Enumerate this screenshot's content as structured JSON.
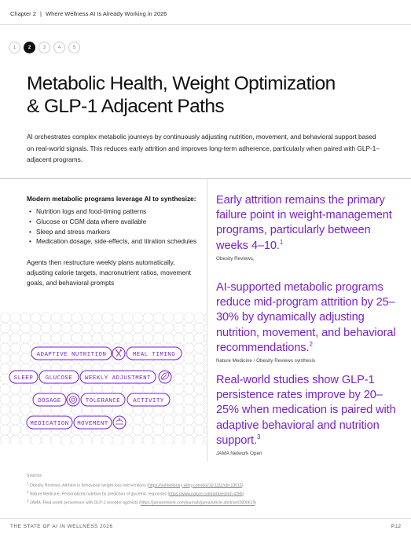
{
  "header": {
    "chapter": "Chapter 2",
    "separator": "|",
    "title": "Where Wellness AI Is Already Working in 2026"
  },
  "pager": {
    "pages": [
      "1",
      "2",
      "3",
      "4",
      "5"
    ],
    "active_index": 1
  },
  "title": {
    "line1": "Metabolic Health, Weight Optimization",
    "line2": "& GLP-1 Adjacent Paths"
  },
  "intro": "AI orchestrates complex metabolic journeys by continuously adjusting nutrition, movement, and behavioral support based on real-world signals. This reduces early attrition and improves long-term adherence, particularly when paired with GLP-1–adjacent programs.",
  "left": {
    "lead": "Modern metabolic programs leverage AI to synthesize:",
    "bullets": [
      "Nutrition logs and food-timing patterns",
      "Glucose or CGM data where available",
      "Sleep and stress markers",
      "Medication dosage, side-effects, and titration schedules"
    ],
    "body": "Agents then restructure weekly plans automatically, adjusting calorie targets, macronutrient ratios, movement goals, and behavioral prompts"
  },
  "chips": {
    "adaptive_nutrition": "ADAPTIVE NUTRITION",
    "meal_timing": "MEAL TIMING",
    "sleep": "SLEEP",
    "glucose": "GLUCOSE",
    "weekly_adjustment": "WEEKLY ADJUSTMENT",
    "dosage": "DOSAGE",
    "tolerance": "TOLERANCE",
    "activity": "ACTIVITY",
    "medication": "MEDICATION",
    "movement": "MOVEMENT"
  },
  "icons": {
    "cutlery": "cutlery-icon",
    "leaf": "leaf-icon",
    "pill": "pill-icon",
    "lotus": "lotus-icon"
  },
  "stats": [
    {
      "text": "Early attrition remains the primary failure point in weight-management programs, particularly between weeks 4–10.",
      "sup": "1",
      "source": "Obesity Reviews,"
    },
    {
      "text": "AI-supported metabolic programs reduce mid-program attrition by 25–30% by dynamically adjusting nutrition, movement, and behavioral recommendations.",
      "sup": "2",
      "source": "Nature Medicine / Obesity Reviews synthesis"
    },
    {
      "text": "Real-world studies show GLP-1 persistence rates improve by 20–25% when medication is paired with adaptive behavioral and nutrition support.",
      "sup": "3",
      "source": "JAMA Network Open"
    }
  ],
  "sources": {
    "label": "Sources",
    "items": [
      {
        "num": "1",
        "text": "Obesity Reviews, Attrition in behavioral weight-loss interventions (",
        "link": "https://onlinelibrary.wiley.com/doi/10.1111/obr.13015",
        "after": ")"
      },
      {
        "num": "2",
        "text": "Nature Medicine, Personalized nutrition by prediction of glycemic responses (",
        "link": "https://www.nature.com/articles/nm.4285",
        "after": ")"
      },
      {
        "num": "3",
        "text": "JAMA, Real-world persistence with GLP-1 receptor agonists (",
        "link": "https://jamanetwork.com/journals/jama/article-abstract/2800619",
        "after": ")"
      }
    ]
  },
  "footer": {
    "left": "THE STATE OF AI IN WELLNESS 2026",
    "right": "P.12"
  },
  "colors": {
    "accent": "#7a1fcf",
    "text": "#111111",
    "pattern": "#e4e4e4"
  }
}
